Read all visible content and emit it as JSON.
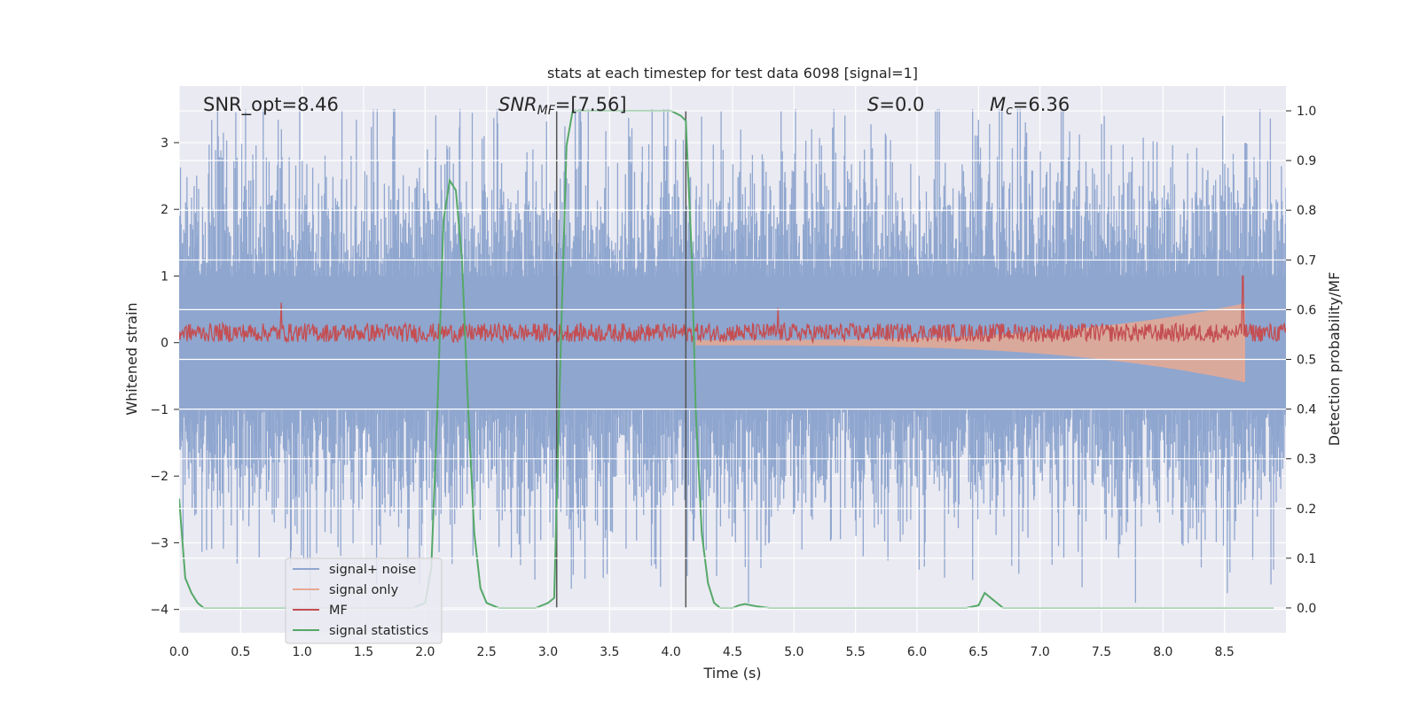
{
  "chart_data": {
    "type": "line",
    "title": "stats at each timestep for test data 6098 [signal=1]",
    "xlabel": "Time (s)",
    "ylabel": "Whitened strain",
    "ylabel_right": "Detection probability/MF",
    "xlim": [
      0.0,
      9.0
    ],
    "ylim": [
      -4.35,
      3.85
    ],
    "ylim_right": [
      -0.05,
      1.05
    ],
    "x_ticks": [
      "0.0",
      "0.5",
      "1.0",
      "1.5",
      "2.0",
      "2.5",
      "3.0",
      "3.5",
      "4.0",
      "4.5",
      "5.0",
      "5.5",
      "6.0",
      "6.5",
      "7.0",
      "7.5",
      "8.0",
      "8.5"
    ],
    "y_ticks": [
      "3",
      "2",
      "1",
      "0",
      "−1",
      "−2",
      "−3",
      "−4"
    ],
    "y_ticks_right": [
      "1.0",
      "0.9",
      "0.8",
      "0.7",
      "0.6",
      "0.5",
      "0.4",
      "0.3",
      "0.2",
      "0.1",
      "0.0"
    ],
    "grid": true,
    "legend_position": "lower-left",
    "annotations": {
      "snr_opt": "SNR_opt=8.46",
      "snr_mf_main": "SNR",
      "snr_mf_sub": "MF",
      "snr_mf_value": "=[7.56]",
      "s_main": "S",
      "s_value": "=0.0",
      "mc_main": "M",
      "mc_sub": "c",
      "mc_value": "=6.36"
    },
    "vertical_markers_x": [
      3.07,
      4.12
    ],
    "series": [
      {
        "name": "signal+ noise",
        "color": "#8fa6cf",
        "axis": "left",
        "description_kind": "noise",
        "amplitude_range": [
          -3.9,
          3.5
        ]
      },
      {
        "name": "signal only",
        "color": "#e6a993",
        "axis": "left",
        "chirp_start": 4.2,
        "chirp_end": 8.66,
        "chirp_peak": 1.0
      },
      {
        "name": "MF",
        "color": "#c44e52",
        "axis": "left",
        "baseline": 0.15,
        "spikes": [
          [
            0.83,
            0.6
          ],
          [
            4.87,
            0.52
          ],
          [
            8.65,
            1.0
          ]
        ]
      },
      {
        "name": "signal statistics",
        "color": "#55a868",
        "axis": "right",
        "x": [
          0.0,
          0.05,
          0.1,
          0.15,
          0.2,
          0.3,
          0.5,
          1.0,
          1.5,
          1.9,
          2.0,
          2.05,
          2.1,
          2.15,
          2.2,
          2.25,
          2.3,
          2.35,
          2.4,
          2.45,
          2.5,
          2.6,
          2.7,
          2.8,
          2.9,
          3.0,
          3.05,
          3.1,
          3.15,
          3.2,
          3.5,
          3.9,
          4.0,
          4.08,
          4.12,
          4.17,
          4.2,
          4.25,
          4.3,
          4.35,
          4.4,
          4.45,
          4.5,
          4.55,
          4.6,
          4.7,
          4.8,
          5.0,
          6.0,
          6.4,
          6.5,
          6.55,
          6.6,
          6.7,
          7.0,
          8.0,
          8.9
        ],
        "y": [
          0.22,
          0.06,
          0.03,
          0.01,
          0.0,
          0.0,
          0.0,
          0.0,
          0.0,
          0.0,
          0.01,
          0.08,
          0.4,
          0.78,
          0.86,
          0.84,
          0.7,
          0.4,
          0.15,
          0.04,
          0.01,
          0.0,
          0.0,
          0.0,
          0.0,
          0.01,
          0.02,
          0.5,
          0.93,
          1.0,
          1.0,
          1.0,
          1.0,
          0.99,
          0.98,
          0.7,
          0.4,
          0.15,
          0.05,
          0.01,
          0.0,
          0.0,
          0.0,
          0.005,
          0.008,
          0.003,
          0.0,
          0.0,
          0.0,
          0.0,
          0.005,
          0.03,
          0.02,
          0.0,
          0.0,
          0.0,
          0.0
        ]
      }
    ]
  }
}
